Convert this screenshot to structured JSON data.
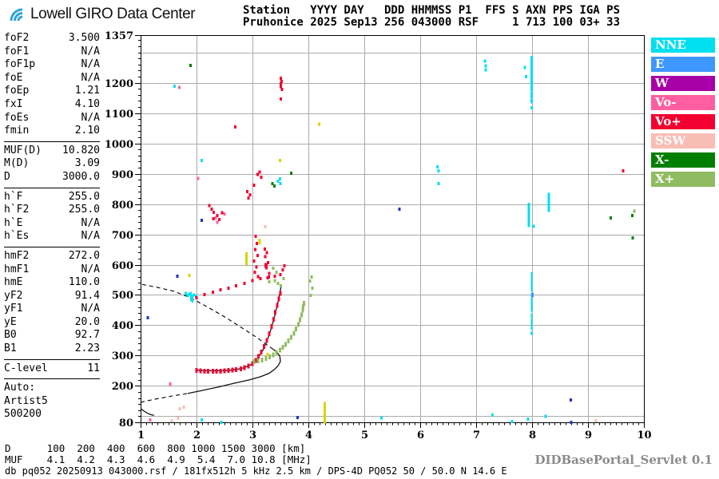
{
  "ui": {
    "logo": {
      "text": "Lowell GIRO Data Center",
      "icon": "giro-wave-icon",
      "icon_color": "#2FA3DC"
    },
    "station_header": {
      "line1": "Station   YYYY DAY   DDD HHMMSS P1  FFS S AXN PPS IGA PS",
      "line2": "Pruhonice 2025 Sep13 256 043000 RSF     1 713 100 03+ 33"
    },
    "left_panel": {
      "rows": [
        {
          "l": "foF2",
          "v": "3.500"
        },
        {
          "l": "foF1",
          "v": "N/A"
        },
        {
          "l": "foF1p",
          "v": "N/A"
        },
        {
          "l": "foE",
          "v": "N/A"
        },
        {
          "l": "foEp",
          "v": "1.21"
        },
        {
          "l": "fxI",
          "v": "4.10"
        },
        {
          "l": "foEs",
          "v": "N/A"
        },
        {
          "l": "fmin",
          "v": "2.10"
        },
        {
          "d": 1
        },
        {
          "l": "MUF(D)",
          "v": "10.820"
        },
        {
          "l": "M(D)",
          "v": "3.09"
        },
        {
          "l": "D",
          "v": "3000.0"
        },
        {
          "d": 1
        },
        {
          "l": "h`F",
          "v": "255.0"
        },
        {
          "l": "h`F2",
          "v": "255.0"
        },
        {
          "l": "h`E",
          "v": "N/A"
        },
        {
          "l": "h`Es",
          "v": "N/A"
        },
        {
          "d": 1
        },
        {
          "l": "hmF2",
          "v": "272.0"
        },
        {
          "l": "hmF1",
          "v": "N/A"
        },
        {
          "l": "hmE",
          "v": "110.0"
        },
        {
          "l": "yF2",
          "v": "91.4"
        },
        {
          "l": "yF1",
          "v": "N/A"
        },
        {
          "l": "yE",
          "v": "20.0"
        },
        {
          "l": "B0",
          "v": "92.7"
        },
        {
          "l": "B1",
          "v": "2.23"
        },
        {
          "d": 1
        },
        {
          "l": "C-level",
          "v": "11"
        },
        {
          "d": 1
        },
        {
          "l": "Auto:",
          "v": ""
        },
        {
          "l": "Artist5",
          "v": ""
        },
        {
          "l": "500200",
          "v": ""
        }
      ]
    },
    "legend": {
      "items": [
        {
          "label": "NNE",
          "color": "#00DFF0"
        },
        {
          "label": "E",
          "color": "#3E97FF"
        },
        {
          "label": "W",
          "color": "#A800A8"
        },
        {
          "label": "Vo-",
          "color": "#FF5FA0"
        },
        {
          "label": "Vo+",
          "color": "#F20030"
        },
        {
          "label": "SSW",
          "color": "#F8BDB5"
        },
        {
          "label": "X-",
          "color": "#007F00"
        },
        {
          "label": "X+",
          "color": "#8FBC60"
        }
      ]
    },
    "footer": {
      "d_line": "D      100  200  400  600  800 1000 1500 3000 [km]",
      "muf_line": "MUF    4.1  4.2  4.3  4.6  4.9  5.4  7.0 10.8 [MHz]",
      "status": "db pq052 20250913 043000.rsf / 181fx512h 5 kHz 2.5 km / DPS-4D PQ052 50 / 50.0 N 14.6 E",
      "servlet": "DIDBasePortal_Servlet 0.1"
    }
  },
  "chart_data": {
    "type": "scatter",
    "title": "Pruhonice ionogram 2025 Sep13 043000",
    "xlabel": "[MHz]",
    "ylabel": "[km]",
    "xlim": [
      1,
      10
    ],
    "ylim": [
      80,
      1357
    ],
    "grid": true,
    "x_tick_labels": [
      1,
      2,
      3,
      4,
      5,
      6,
      7,
      8,
      9,
      10
    ],
    "y_tick_labels": [
      1357,
      1200,
      1100,
      1000,
      900,
      800,
      700,
      600,
      500,
      400,
      300,
      200,
      80
    ],
    "grid_x": [
      2,
      3,
      4,
      5,
      6,
      7,
      8,
      9
    ],
    "grid_y": [
      100,
      200,
      300,
      400,
      500,
      600,
      700,
      800,
      900,
      1000,
      1100,
      1200,
      1300
    ],
    "o_trace": {
      "name": "F2 ordinary trace",
      "color": "#F20030",
      "points": [
        [
          2.0,
          251
        ],
        [
          2.07,
          250
        ],
        [
          2.14,
          249
        ],
        [
          2.21,
          248
        ],
        [
          2.29,
          248
        ],
        [
          2.36,
          249
        ],
        [
          2.43,
          249
        ],
        [
          2.5,
          250
        ],
        [
          2.57,
          251
        ],
        [
          2.64,
          252
        ],
        [
          2.71,
          254
        ],
        [
          2.79,
          257
        ],
        [
          2.86,
          260
        ],
        [
          2.93,
          266
        ],
        [
          3.0,
          274
        ],
        [
          3.06,
          284
        ],
        [
          3.11,
          297
        ],
        [
          3.16,
          312
        ],
        [
          3.21,
          330
        ],
        [
          3.26,
          350
        ],
        [
          3.3,
          372
        ],
        [
          3.34,
          396
        ],
        [
          3.38,
          420
        ],
        [
          3.41,
          444
        ],
        [
          3.44,
          466
        ],
        [
          3.47,
          487
        ],
        [
          3.5,
          505
        ]
      ]
    },
    "x_trace": {
      "name": "F2 extraordinary trace",
      "color": "#8FBC60",
      "points": [
        [
          3.03,
          280
        ],
        [
          3.1,
          283
        ],
        [
          3.17,
          286
        ],
        [
          3.24,
          290
        ],
        [
          3.31,
          296
        ],
        [
          3.37,
          302
        ],
        [
          3.43,
          310
        ],
        [
          3.49,
          318
        ],
        [
          3.54,
          327
        ],
        [
          3.59,
          337
        ],
        [
          3.64,
          348
        ],
        [
          3.69,
          360
        ],
        [
          3.74,
          374
        ],
        [
          3.78,
          388
        ],
        [
          3.82,
          403
        ],
        [
          3.85,
          418
        ],
        [
          3.88,
          434
        ],
        [
          3.9,
          450
        ],
        [
          3.91,
          462
        ],
        [
          3.92,
          472
        ]
      ]
    },
    "fitted_trace": {
      "name": "ARTIST fitted trace",
      "color": "#111111",
      "points": [
        [
          2.0,
          252
        ],
        [
          2.2,
          250
        ],
        [
          2.4,
          250
        ],
        [
          2.6,
          252
        ],
        [
          2.8,
          257
        ],
        [
          3.0,
          272
        ],
        [
          3.1,
          293
        ],
        [
          3.2,
          322
        ],
        [
          3.3,
          368
        ],
        [
          3.38,
          418
        ],
        [
          3.44,
          462
        ],
        [
          3.48,
          498
        ],
        [
          3.51,
          525
        ]
      ]
    },
    "profile": {
      "name": "electron density profile",
      "e_region_solid": [
        [
          1.01,
          124
        ],
        [
          1.06,
          117
        ],
        [
          1.12,
          110
        ],
        [
          1.19,
          105
        ],
        [
          1.24,
          103
        ]
      ],
      "valley_dashed": [
        [
          1.0,
          146
        ],
        [
          1.3,
          158
        ],
        [
          1.6,
          168
        ],
        [
          1.84,
          175
        ]
      ],
      "f_solid": [
        [
          1.84,
          175
        ],
        [
          2.1,
          185
        ],
        [
          2.4,
          197
        ],
        [
          2.7,
          210
        ],
        [
          2.95,
          220
        ],
        [
          3.15,
          231
        ],
        [
          3.3,
          242
        ],
        [
          3.39,
          254
        ],
        [
          3.46,
          267
        ],
        [
          3.5,
          281
        ],
        [
          3.49,
          298
        ],
        [
          3.44,
          311
        ],
        [
          3.37,
          321
        ]
      ],
      "topside_dashed": [
        [
          3.37,
          321
        ],
        [
          3.1,
          357
        ],
        [
          2.8,
          393
        ],
        [
          2.5,
          428
        ],
        [
          2.2,
          460
        ],
        [
          1.9,
          490
        ],
        [
          1.6,
          512
        ],
        [
          1.3,
          525
        ],
        [
          1.0,
          536
        ]
      ]
    },
    "echo_groups": [
      {
        "name": "NNE",
        "color": "#00DFF0",
        "points": [
          [
            1.61,
            1188
          ],
          [
            2.09,
            943
          ],
          [
            3.46,
            875
          ],
          [
            3.49,
            883
          ],
          [
            3.5,
            867
          ],
          [
            1.81,
            505
          ],
          [
            1.84,
            498
          ],
          [
            1.87,
            503
          ],
          [
            1.9,
            495,
            2,
            12
          ],
          [
            1.93,
            488,
            2,
            10
          ],
          [
            1.96,
            500
          ],
          [
            1.99,
            495
          ],
          [
            7.16,
            1272
          ],
          [
            7.17,
            1256
          ],
          [
            7.17,
            1243
          ],
          [
            7.87,
            1251
          ],
          [
            7.99,
            1262,
            3,
            20
          ],
          [
            7.99,
            1238,
            3,
            8
          ],
          [
            7.89,
            1220
          ],
          [
            7.99,
            1222,
            3,
            6
          ],
          [
            7.99,
            1205,
            3,
            8
          ],
          [
            7.99,
            1185,
            3,
            10
          ],
          [
            7.99,
            1160,
            3,
            8
          ],
          [
            7.99,
            1140,
            3,
            6
          ],
          [
            7.99,
            1117
          ],
          [
            6.31,
            922
          ],
          [
            6.33,
            909
          ],
          [
            6.33,
            867
          ],
          [
            7.94,
            775,
            3,
            22
          ],
          [
            7.94,
            740,
            3,
            12
          ],
          [
            8.3,
            805,
            3,
            24
          ],
          [
            8.03,
            727
          ],
          [
            7.99,
            565,
            2,
            8
          ],
          [
            7.99,
            545,
            2,
            10
          ],
          [
            7.99,
            522,
            2,
            8
          ],
          [
            7.99,
            500,
            2,
            6
          ],
          [
            7.99,
            478,
            2,
            10
          ],
          [
            7.99,
            455,
            2,
            8
          ],
          [
            7.99,
            432,
            2,
            6
          ],
          [
            7.99,
            412,
            2,
            8
          ],
          [
            7.99,
            392,
            2,
            6
          ],
          [
            7.99,
            373
          ],
          [
            2.09,
            88
          ],
          [
            2.44,
            80
          ],
          [
            5.31,
            95
          ],
          [
            7.29,
            104
          ],
          [
            7.64,
            83
          ],
          [
            7.93,
            91
          ],
          [
            8.24,
            100
          ]
        ]
      },
      {
        "name": "E",
        "color": "#3E97FF",
        "points": [
          [
            8.01,
            500,
            3,
            6
          ]
        ]
      },
      {
        "name": "E-dark",
        "color": "#2233BB",
        "points": [
          [
            2.09,
            746
          ],
          [
            3.81,
            96
          ],
          [
            5.63,
            783
          ],
          [
            8.69,
            154
          ],
          [
            8.7,
            80
          ],
          [
            1.66,
            562
          ],
          [
            1.13,
            425
          ]
        ]
      },
      {
        "name": "Vo-",
        "color": "#FF5FA0",
        "points": [
          [
            1.69,
            1185
          ],
          [
            2.03,
            885
          ],
          [
            2.34,
            754
          ],
          [
            2.5,
            767
          ],
          [
            1.53,
            206
          ],
          [
            1.17,
            88
          ],
          [
            2.37,
            740
          ]
        ]
      },
      {
        "name": "Vo+",
        "color": "#F20030",
        "points": [
          [
            3.51,
            1215
          ],
          [
            3.52,
            1204
          ],
          [
            3.51,
            1192,
            3,
            8
          ],
          [
            3.53,
            1178
          ],
          [
            3.51,
            1146
          ],
          [
            2.69,
            1054
          ],
          [
            3.13,
            906
          ],
          [
            3.16,
            888
          ],
          [
            3.09,
            898
          ],
          [
            3.03,
            862
          ],
          [
            2.91,
            841
          ],
          [
            2.96,
            830
          ],
          [
            2.93,
            820
          ],
          [
            2.23,
            795
          ],
          [
            2.27,
            783
          ],
          [
            2.31,
            772
          ],
          [
            2.37,
            762
          ],
          [
            2.41,
            749
          ],
          [
            2.46,
            771
          ],
          [
            2.3,
            752
          ],
          [
            9.63,
            909
          ],
          [
            3.06,
            693
          ],
          [
            3.08,
            670
          ],
          [
            3.05,
            650
          ],
          [
            3.09,
            630
          ],
          [
            3.03,
            612
          ],
          [
            3.07,
            592
          ],
          [
            3.04,
            575
          ],
          [
            3.1,
            560
          ],
          [
            3.22,
            652
          ],
          [
            3.26,
            640
          ],
          [
            3.23,
            626
          ],
          [
            3.28,
            607
          ],
          [
            3.25,
            589
          ],
          [
            3.3,
            571
          ],
          [
            3.27,
            556
          ],
          [
            3.24,
            598,
            4,
            6
          ],
          [
            2.0,
            491
          ],
          [
            2.14,
            501
          ],
          [
            2.29,
            509
          ],
          [
            2.43,
            517
          ],
          [
            2.57,
            522
          ],
          [
            2.71,
            530
          ],
          [
            2.86,
            538
          ],
          [
            3.0,
            548
          ],
          [
            3.14,
            554
          ],
          [
            3.29,
            559
          ],
          [
            3.4,
            562
          ],
          [
            3.5,
            567
          ],
          [
            3.54,
            583
          ],
          [
            3.57,
            596
          ]
        ]
      },
      {
        "name": "SSW",
        "color": "#F8BDB5",
        "points": [
          [
            3.23,
            725
          ],
          [
            1.7,
            125
          ],
          [
            1.67,
            93
          ],
          [
            1.56,
            85
          ],
          [
            9.14,
            85
          ],
          [
            1.77,
            130
          ]
        ]
      },
      {
        "name": "X-",
        "color": "#007F00",
        "points": [
          [
            9.41,
            754
          ],
          [
            9.79,
            762
          ],
          [
            9.8,
            688
          ],
          [
            3.69,
            901
          ],
          [
            3.36,
            867
          ],
          [
            3.39,
            859
          ],
          [
            1.89,
            1257
          ]
        ]
      },
      {
        "name": "X+",
        "color": "#8FBC60",
        "points": [
          [
            4.03,
            546
          ],
          [
            4.06,
            559
          ],
          [
            4.04,
            498
          ],
          [
            4.07,
            522
          ],
          [
            3.37,
            588
          ],
          [
            3.43,
            575
          ],
          [
            3.4,
            548
          ],
          [
            3.46,
            538
          ],
          [
            3.51,
            530
          ],
          [
            3.3,
            543
          ],
          [
            3.56,
            554
          ],
          [
            9.83,
            777
          ]
        ]
      },
      {
        "name": "saturated",
        "color": "#D6D600",
        "points": [
          [
            4.19,
            1064
          ],
          [
            3.49,
            943
          ],
          [
            3.13,
            677,
            3,
            7
          ],
          [
            2.89,
            620,
            3,
            16
          ],
          [
            4.29,
            115,
            3,
            24
          ],
          [
            4.29,
            87,
            3,
            8
          ],
          [
            1.87,
            564
          ],
          [
            3.27,
            304
          ]
        ]
      }
    ]
  }
}
